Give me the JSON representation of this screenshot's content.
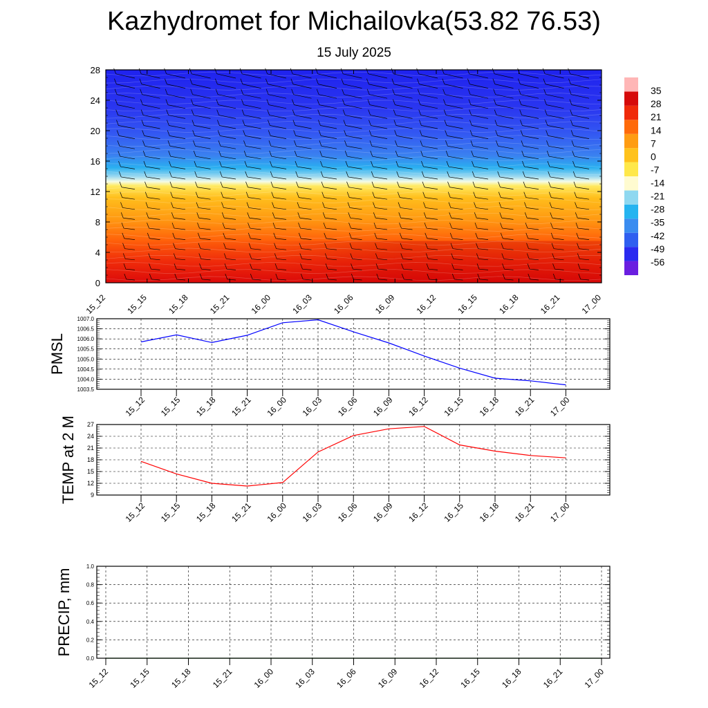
{
  "title": "Kazhydromet for Michailovka(53.82 76.53)",
  "subtitle": "15 July 2025",
  "time_labels": [
    "15_12",
    "15_15",
    "15_18",
    "15_21",
    "16_00",
    "16_03",
    "16_06",
    "16_09",
    "16_12",
    "16_15",
    "16_18",
    "16_21",
    "17_00"
  ],
  "chart_data": [
    {
      "type": "heatmap",
      "name": "vertical-temperature-cross-section",
      "x": [
        "15_12",
        "15_15",
        "15_18",
        "15_21",
        "16_00",
        "16_03",
        "16_06",
        "16_09",
        "16_12",
        "16_15",
        "16_18",
        "16_21",
        "17_00"
      ],
      "y_ticks": [
        0,
        4,
        8,
        12,
        16,
        20,
        24,
        28
      ],
      "ylim": [
        0,
        28
      ],
      "colorbar_labels": [
        "35",
        "28",
        "21",
        "14",
        "7",
        "0",
        "-7",
        "-14",
        "-21",
        "-28",
        "-35",
        "-42",
        "-49",
        "-56"
      ],
      "colorbar_range": [
        -63,
        42
      ],
      "colorbar_colors": [
        "#6a1ee0",
        "#2a2af0",
        "#2f5ff0",
        "#3a8cf0",
        "#25b4f0",
        "#8fd8f0",
        "#fffbd0",
        "#ffe84a",
        "#ffc21c",
        "#ff9c12",
        "#ff6a0a",
        "#f02a0a",
        "#d60a0a",
        "#ffb6b6"
      ],
      "approx_temperature_profile": [
        {
          "y": 0,
          "value": 21
        },
        {
          "y": 4,
          "value": 17
        },
        {
          "y": 8,
          "value": 8
        },
        {
          "y": 12,
          "value": 1
        },
        {
          "y": 13,
          "value": -14
        },
        {
          "y": 14.5,
          "value": -25
        },
        {
          "y": 17,
          "value": -35
        },
        {
          "y": 20,
          "value": -46
        },
        {
          "y": 24,
          "value": -52
        },
        {
          "y": 28,
          "value": -55
        }
      ],
      "wind_barbs": true
    },
    {
      "type": "line",
      "ylabel": "PMSL",
      "x": [
        "15_12",
        "15_15",
        "15_18",
        "15_21",
        "16_00",
        "16_03",
        "16_06",
        "16_09",
        "16_12",
        "16_15",
        "16_18",
        "16_21",
        "17_00"
      ],
      "series": [
        {
          "values": [
            1005.85,
            1006.2,
            1005.82,
            1006.18,
            1006.8,
            1006.95,
            1006.35,
            1005.8,
            1005.15,
            1004.55,
            1004.05,
            1003.92,
            1003.72
          ],
          "color": "#0000ff"
        }
      ],
      "ylim": [
        1003.5,
        1007.0
      ],
      "y_ticks": [
        "1003.5",
        "1004.0",
        "1004.5",
        "1005.0",
        "1005.5",
        "1006.0",
        "1006.5",
        "1007.0"
      ],
      "grid": true
    },
    {
      "type": "line",
      "ylabel": "TEMP at 2 M",
      "x": [
        "15_12",
        "15_15",
        "15_18",
        "15_21",
        "16_00",
        "16_03",
        "16_06",
        "16_09",
        "16_12",
        "16_15",
        "16_18",
        "16_21",
        "17_00"
      ],
      "series": [
        {
          "values": [
            17.6,
            14.4,
            12.0,
            11.3,
            12.2,
            20.0,
            24.2,
            25.9,
            26.5,
            21.8,
            20.2,
            19.1,
            18.5
          ],
          "color": "#ff0000"
        }
      ],
      "ylim": [
        9,
        27
      ],
      "y_ticks": [
        "9",
        "12",
        "15",
        "18",
        "21",
        "24",
        "27"
      ],
      "grid": true
    },
    {
      "type": "line",
      "ylabel": "PRECIP, mm",
      "x": [
        "15_12",
        "15_15",
        "15_18",
        "15_21",
        "16_00",
        "16_03",
        "16_06",
        "16_09",
        "16_12",
        "16_15",
        "16_18",
        "16_21",
        "17_00"
      ],
      "series": [
        {
          "values": [
            0,
            0,
            0,
            0,
            0,
            0,
            0,
            0,
            0,
            0,
            0,
            0,
            0
          ],
          "color": "#006400"
        }
      ],
      "ylim": [
        0,
        1.0
      ],
      "y_ticks": [
        "0.0",
        "0.2",
        "0.4",
        "0.6",
        "0.8",
        "1.0"
      ],
      "grid": true
    }
  ]
}
